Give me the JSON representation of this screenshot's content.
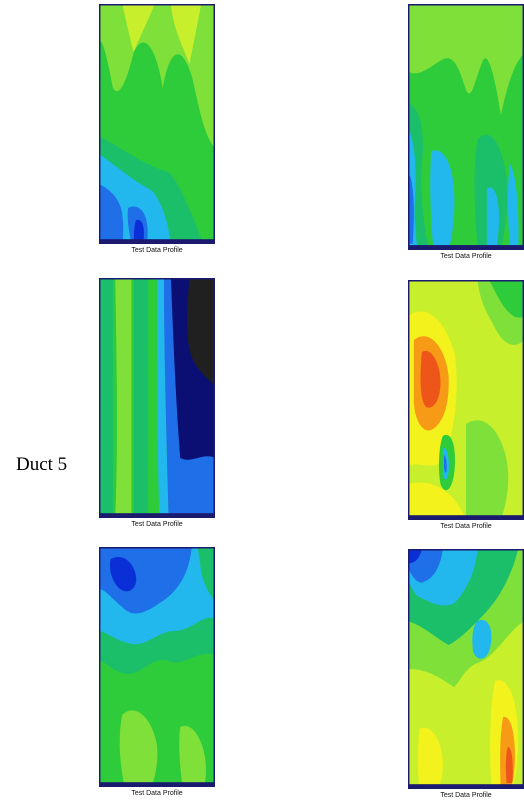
{
  "row_label": "Duct 5",
  "plots": [
    {
      "caption": "Test Data Profile"
    },
    {
      "caption": "Test Data Profile"
    },
    {
      "caption": "Test Data Profile"
    },
    {
      "caption": "Test Data Profile"
    },
    {
      "caption": "Test Data Profile"
    },
    {
      "caption": "Test Data Profile"
    }
  ],
  "colors": {
    "frame": "#1a1a6e",
    "deep_blue": "#0a2fd6",
    "blue": "#1f6fe8",
    "cyan": "#22b8ee",
    "teal_green": "#1bbf6a",
    "green": "#2ecc3a",
    "light_green": "#7fe03a",
    "yellow_green": "#c8ef2c",
    "yellow": "#f4f21c",
    "orange": "#f79a16",
    "red_orange": "#ee5518",
    "navy": "#0b0f73",
    "black": "#202020"
  }
}
